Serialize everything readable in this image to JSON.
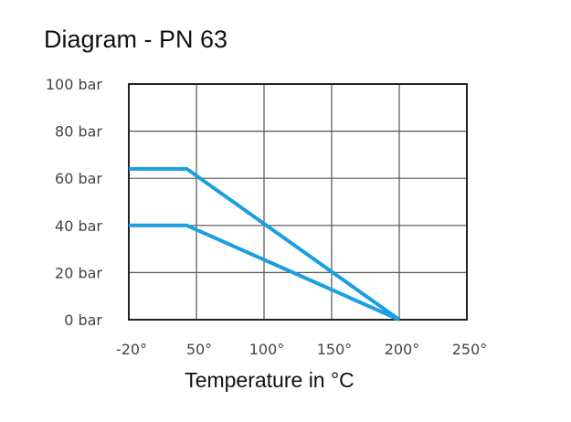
{
  "chart_data": {
    "type": "line",
    "title": "Diagram - PN 63",
    "xlabel": "Temperature in °C",
    "ylabel": "",
    "x_ticks": [
      -20,
      50,
      100,
      150,
      200,
      250
    ],
    "x_tick_labels": [
      "-20°",
      "50°",
      "100°",
      "150°",
      "200°",
      "250°"
    ],
    "y_ticks": [
      0,
      20,
      40,
      60,
      80,
      100
    ],
    "y_tick_labels": [
      "0 bar",
      "20 bar",
      "40 bar",
      "60 bar",
      "80 bar",
      "100 bar"
    ],
    "xlim": [
      -20,
      250
    ],
    "ylim": [
      0,
      100
    ],
    "grid": true,
    "line_color": "#1a9fe0",
    "series": [
      {
        "x": [
          -20,
          40,
          200
        ],
        "y": [
          64,
          64,
          0
        ]
      },
      {
        "x": [
          -20,
          40,
          200
        ],
        "y": [
          40,
          40,
          0
        ]
      }
    ]
  }
}
